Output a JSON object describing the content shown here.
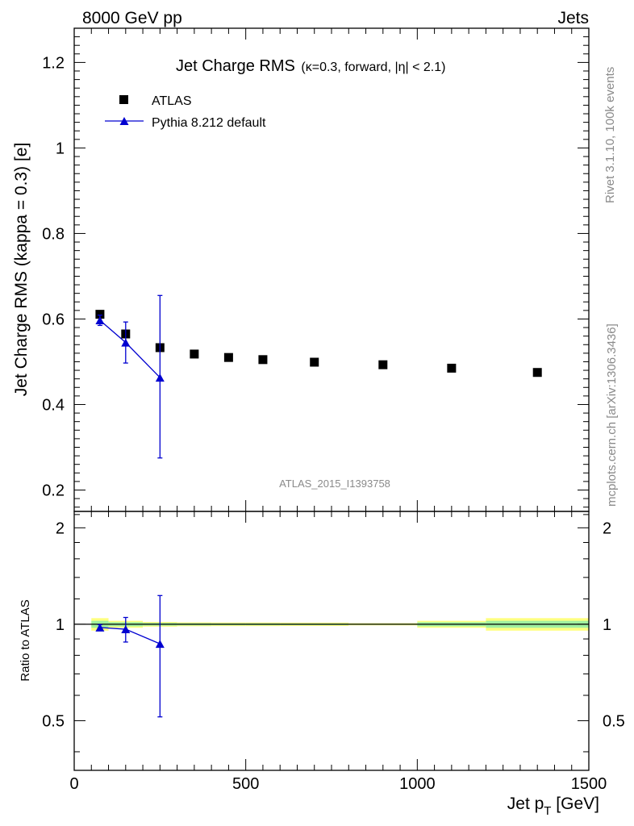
{
  "header": {
    "left": "8000 GeV pp",
    "right": "Jets"
  },
  "side_labels": {
    "rivet": "Rivet 3.1.10,  100k events",
    "source": "mcplots.cern.ch [arXiv:1306.3436]"
  },
  "watermark": "ATLAS_2015_I1393758",
  "chart_data": [
    {
      "type": "scatter",
      "title": "Jet Charge RMS",
      "title_suffix": "(κ=0.3, forward, |η| < 2.1)",
      "ylabel": "Jet Charge RMS (kappa = 0.3) [e]",
      "xlim": [
        0,
        1500
      ],
      "ylim": [
        0.15,
        1.28
      ],
      "yticks": [
        0.2,
        0.4,
        0.6,
        0.8,
        1,
        1.2
      ],
      "ytick_labels": [
        "0.2",
        "0.4",
        "0.6",
        "0.8",
        "1",
        "1.2"
      ],
      "grid": false,
      "legend": {
        "placement": "top-left"
      },
      "series": [
        {
          "name": "ATLAS",
          "marker": "square",
          "color": "#000000",
          "x": [
            75,
            150,
            250,
            350,
            450,
            550,
            700,
            900,
            1100,
            1350
          ],
          "y": [
            0.611,
            0.565,
            0.533,
            0.518,
            0.51,
            0.505,
            0.499,
            0.493,
            0.485,
            0.475
          ]
        },
        {
          "name": "Pythia 8.212 default",
          "marker": "triangle",
          "color": "#0000d0",
          "x": [
            75,
            150,
            250
          ],
          "y": [
            0.597,
            0.545,
            0.463
          ],
          "yerr_low": [
            0.012,
            0.048,
            0.188
          ],
          "yerr_high": [
            0.012,
            0.048,
            0.192
          ]
        }
      ]
    },
    {
      "type": "line",
      "ylabel": "Ratio to ATLAS",
      "xlabel": "Jet p_T [GeV]",
      "xlim": [
        0,
        1500
      ],
      "ylim": [
        0.35,
        2.25
      ],
      "xticks": [
        0,
        500,
        1000,
        1500
      ],
      "xtick_labels": [
        "0",
        "500",
        "1000",
        "1500"
      ],
      "yticks": [
        0.5,
        1,
        2
      ],
      "ytick_labels": [
        "0.5",
        "1",
        "2"
      ],
      "reference_line": 1,
      "uncertainty_bands": [
        {
          "x": [
            50,
            100
          ],
          "inner": [
            0.975,
            1.025
          ],
          "outer": [
            0.955,
            1.045
          ]
        },
        {
          "x": [
            100,
            200
          ],
          "inner": [
            0.985,
            1.015
          ],
          "outer": [
            0.975,
            1.025
          ]
        },
        {
          "x": [
            200,
            300
          ],
          "inner": [
            0.99,
            1.01
          ],
          "outer": [
            0.983,
            1.017
          ]
        },
        {
          "x": [
            300,
            400
          ],
          "inner": [
            0.992,
            1.008
          ],
          "outer": [
            0.986,
            1.014
          ]
        },
        {
          "x": [
            400,
            500
          ],
          "inner": [
            0.993,
            1.007
          ],
          "outer": [
            0.987,
            1.013
          ]
        },
        {
          "x": [
            500,
            600
          ],
          "inner": [
            0.993,
            1.007
          ],
          "outer": [
            0.987,
            1.013
          ]
        },
        {
          "x": [
            600,
            800
          ],
          "inner": [
            0.994,
            1.006
          ],
          "outer": [
            0.988,
            1.012
          ]
        },
        {
          "x": [
            800,
            1000
          ],
          "inner": [
            0.996,
            1.004
          ],
          "outer": [
            0.992,
            1.008
          ]
        },
        {
          "x": [
            1000,
            1200
          ],
          "inner": [
            0.985,
            1.015
          ],
          "outer": [
            0.975,
            1.025
          ]
        },
        {
          "x": [
            1200,
            1500
          ],
          "inner": [
            0.975,
            1.025
          ],
          "outer": [
            0.955,
            1.045
          ]
        }
      ],
      "series": [
        {
          "name": "Pythia 8.212 default",
          "marker": "triangle",
          "color": "#0000d0",
          "x": [
            75,
            150,
            250
          ],
          "y": [
            0.977,
            0.965,
            0.869
          ],
          "yerr_low": [
            0.02,
            0.085,
            0.355
          ],
          "yerr_high": [
            0.02,
            0.085,
            0.36
          ]
        }
      ]
    }
  ]
}
